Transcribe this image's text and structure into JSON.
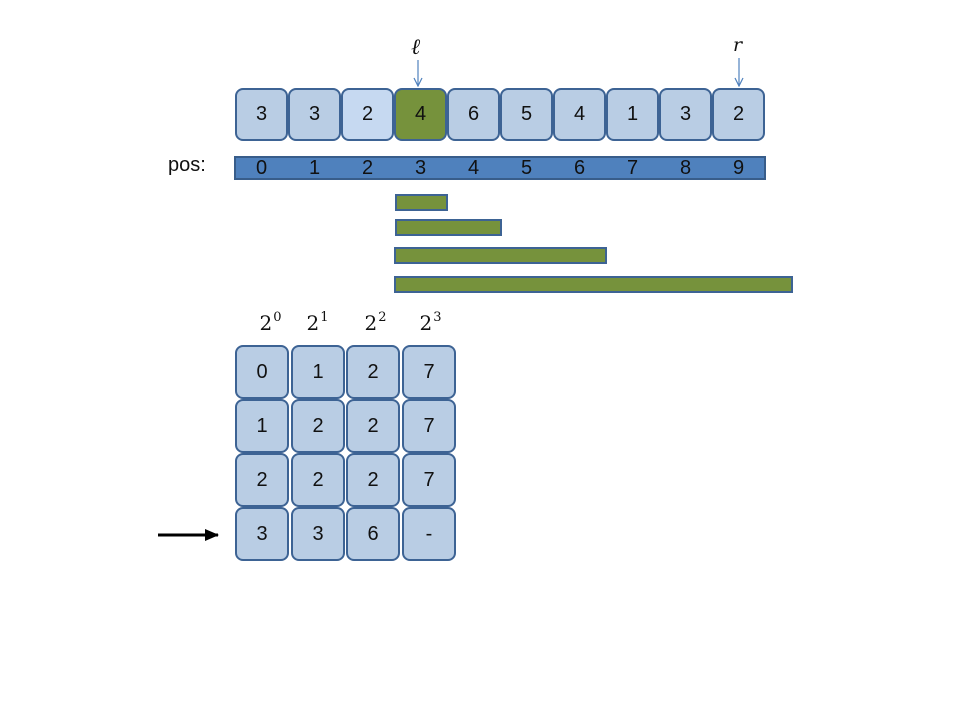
{
  "pointers": {
    "left": "ℓ",
    "right": "r"
  },
  "array": [
    "3",
    "3",
    "2",
    "4",
    "6",
    "5",
    "4",
    "1",
    "3",
    "2"
  ],
  "highlight_index": 3,
  "light_index": 2,
  "pos_label": "pos:",
  "positions": [
    "0",
    "1",
    "2",
    "3",
    "4",
    "5",
    "6",
    "7",
    "8",
    "9"
  ],
  "powers": [
    {
      "base": "2",
      "exp": "0"
    },
    {
      "base": "2",
      "exp": "1"
    },
    {
      "base": "2",
      "exp": "2"
    },
    {
      "base": "2",
      "exp": "3"
    }
  ],
  "table": [
    [
      "0",
      "1",
      "2",
      "7"
    ],
    [
      "1",
      "2",
      "2",
      "7"
    ],
    [
      "2",
      "2",
      "2",
      "7"
    ],
    [
      "3",
      "3",
      "6",
      "-"
    ]
  ],
  "colors": {
    "cell": "#b9cde4",
    "cell_border": "#3d6394",
    "highlight": "#76923c",
    "pos_bar": "#4f81bd"
  }
}
